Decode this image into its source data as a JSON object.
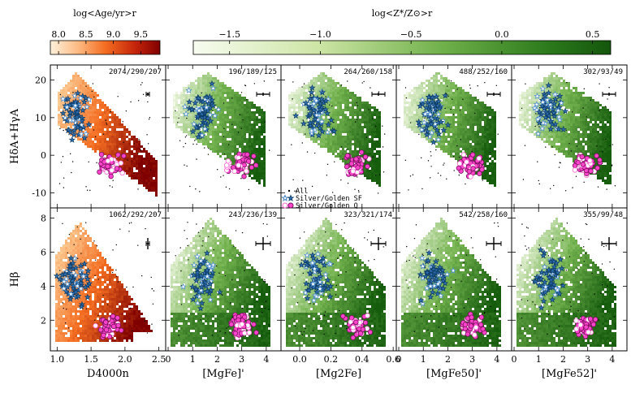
{
  "colorbars": {
    "age": {
      "title": "log<Age/yr>r",
      "ticks": [
        "8.0",
        "8.5",
        "9.0",
        "9.5"
      ],
      "values": [
        8.0,
        8.5,
        9.0,
        9.5
      ],
      "range": [
        7.85,
        9.85
      ]
    },
    "metal": {
      "title": "log<Z*/Z⊙>r",
      "ticks": [
        "−1.5",
        "−1.0",
        "−0.5",
        "0.0",
        "0.5"
      ],
      "values": [
        -1.5,
        -1.0,
        -0.5,
        0.0,
        0.5
      ],
      "range": [
        -1.7,
        0.6
      ]
    }
  },
  "legend": {
    "all": "All",
    "sf": "Silver/Golden SF",
    "q": "Silver/Golden Q"
  },
  "colors": {
    "age_low": "#fee8c8",
    "age_mid": "#f46d21",
    "age_high": "#7f0000",
    "metal_low": "#f7fcf0",
    "metal_high": "#1a6b12",
    "sf_fill": "#2f6fb0",
    "sf_edge": "#0d3b66",
    "q_fill": "#ff44cc",
    "q_edge": "#7a1060"
  },
  "chart_data": {
    "type": "scatter",
    "rows": [
      {
        "ylabel": "HδA+HγA",
        "ylim": [
          -14,
          24
        ],
        "yticks": [
          -10,
          0,
          10,
          20
        ]
      },
      {
        "ylabel": "Hβ",
        "ylim": [
          0.2,
          8.6
        ],
        "yticks": [
          2,
          4,
          6,
          8
        ]
      }
    ],
    "columns": [
      {
        "xlabel": "D4000n",
        "xlim": [
          0.9,
          2.6
        ],
        "xticks": [
          1.0,
          1.5,
          2.0,
          2.5
        ],
        "colorbar": "age"
      },
      {
        "xlabel": "[MgFe]'",
        "xlim": [
          -0.1,
          4.6
        ],
        "xticks": [
          0,
          1,
          2,
          3,
          4
        ],
        "colorbar": "metal"
      },
      {
        "xlabel": "[Mg2Fe]",
        "xlim": [
          -0.12,
          0.62
        ],
        "xticks": [
          0.0,
          0.2,
          0.4,
          0.6
        ],
        "colorbar": "metal"
      },
      {
        "xlabel": "[MgFe50]'",
        "xlim": [
          -0.1,
          4.6
        ],
        "xticks": [
          0,
          1,
          2,
          3,
          4
        ],
        "colorbar": "metal"
      },
      {
        "xlabel": "[MgFe52]'",
        "xlim": [
          -0.1,
          4.6
        ],
        "xticks": [
          0,
          1,
          2,
          3,
          4
        ],
        "colorbar": "metal"
      }
    ],
    "counts": [
      [
        "2074/290/207",
        "196/189/125",
        "264/260/158",
        "488/252/160",
        "302/93/49"
      ],
      [
        "1062/292/207",
        "243/236/139",
        "323/321/174",
        "542/258/160",
        "355/99/48"
      ]
    ],
    "grid": false,
    "legend_position": "bottom-left of panel row 1, column 3",
    "series": [
      {
        "name": "All"
      },
      {
        "name": "Silver/Golden SF"
      },
      {
        "name": "Silver/Golden Q"
      }
    ]
  }
}
